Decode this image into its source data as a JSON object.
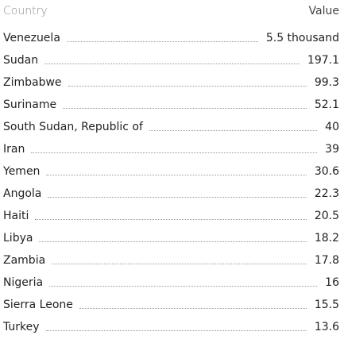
{
  "header": {
    "country_label": "Country",
    "value_label": "Value"
  },
  "chart_data": {
    "type": "table",
    "columns": [
      "Country",
      "Value"
    ],
    "rows": [
      {
        "country": "Venezuela",
        "value": "5.5 thousand"
      },
      {
        "country": "Sudan",
        "value": "197.1"
      },
      {
        "country": "Zimbabwe",
        "value": "99.3"
      },
      {
        "country": "Suriname",
        "value": "52.1"
      },
      {
        "country": "South Sudan, Republic of",
        "value": "40"
      },
      {
        "country": "Iran",
        "value": "39"
      },
      {
        "country": "Yemen",
        "value": "30.6"
      },
      {
        "country": "Angola",
        "value": "22.3"
      },
      {
        "country": "Haiti",
        "value": "20.5"
      },
      {
        "country": "Libya",
        "value": "18.2"
      },
      {
        "country": "Zambia",
        "value": "17.8"
      },
      {
        "country": "Nigeria",
        "value": "16"
      },
      {
        "country": "Sierra Leone",
        "value": "15.5"
      },
      {
        "country": "Turkey",
        "value": "13.6"
      }
    ]
  }
}
